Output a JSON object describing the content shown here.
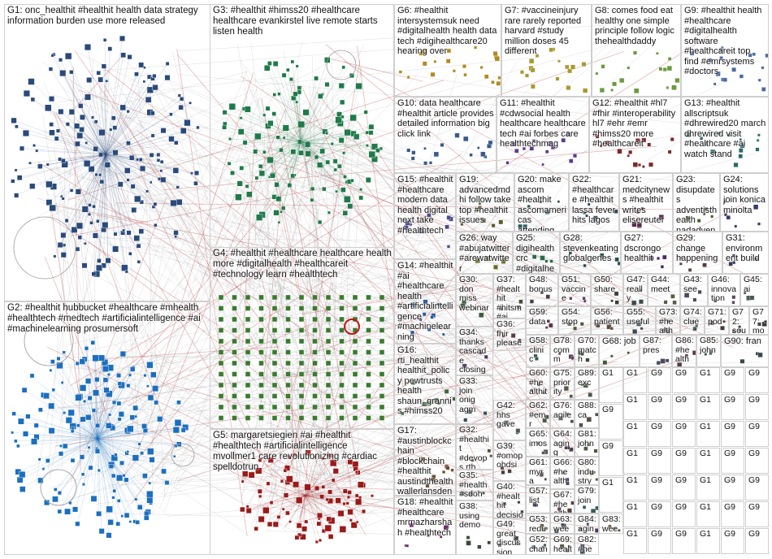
{
  "graph_title": "",
  "groups": [
    {
      "id": "G1",
      "label": "G1: onc_healthit #healthit health data strategy information burden use more released",
      "color": "#2a4a7a"
    },
    {
      "id": "G2",
      "label": "G2: #healthit hubbucket #healthcare #mhealth #healthtech #medtech #artificialintelligence #ai #machinelearning prosumersoft",
      "color": "#1c6fbf"
    },
    {
      "id": "G3",
      "label": "G3: #healthit #himss20 #healthcare healthcare evankirstel live remote starts listen health",
      "color": "#1f7a4a"
    },
    {
      "id": "G4",
      "label": "G4: #healthit #healthcare healthcare health more #digitalhealth #healthcareit #technology learn #healthtech",
      "color": "#3a7a30"
    },
    {
      "id": "G5",
      "label": "G5: margaretsiegien #ai #healthit #healthtech #artificialintelligence mvollmer1 care revolutionizing #cardiac spelldotrun",
      "color": "#9a1a1a"
    },
    {
      "id": "G6",
      "label": "G6: #healthit intersystemsuk need #digitalhealth health data tech #digihealthcare20 hearing over",
      "color": "#b08a20"
    },
    {
      "id": "G7",
      "label": "G7: #vaccineinjury rare rarely reported harvard #study million doses 45 different",
      "color": "#a89a30"
    },
    {
      "id": "G8",
      "label": "G8: comes food eat healthy one simple principle follow logic thehealthdaddy",
      "color": "#6a9a40"
    },
    {
      "id": "G9",
      "label": "G9: #healthit health #healthcare #digitalhealth software #healthcareit top find #emrsystems #doctors",
      "color": "#4a6aa0"
    },
    {
      "id": "G10",
      "label": "G10: data healthcare #healthit article provides detailed information big click link",
      "color": "#3a5a8a"
    },
    {
      "id": "G11",
      "label": "G11: #healthit #cdwsocial health healthcare healthcare tech #ai forbes care healthtechmag",
      "color": "#5a3a8a"
    },
    {
      "id": "G12",
      "label": "G12: #healthit #hl7 #fhir #interoperability hl7 #ehr #emr #himss20 more #healthcareit",
      "color": "#7a2a2a"
    },
    {
      "id": "G13",
      "label": "G13: #healthit allscriptsuk #dhrewired20 march dhrewired visit #healthcare #ai watch stand",
      "color": "#2a6a6a"
    },
    {
      "id": "G14",
      "label": "G14: #healthit #ai #healthcare health #artificialintelligence #machinelearning",
      "color": "#2a5a9a"
    },
    {
      "id": "G15",
      "label": "G15: #healthit #healthcare modern data health digital next take #healthtech",
      "color": "#4a4a8a"
    },
    {
      "id": "G16",
      "label": "G16: rti_healthit healthit_policy pewtrusts health shaun_grannis #himss20",
      "color": "#3a6a3a"
    },
    {
      "id": "G17",
      "label": "G17: #austinblockchain #blockchain #healthit austindthealth wallerlansden",
      "color": "#6a4a2a"
    },
    {
      "id": "G18",
      "label": "G18: #healthit #healthcare mrmazharshah #healthtech",
      "color": "#6a2a6a"
    },
    {
      "id": "G19",
      "label": "G19: advancedmd hi follow take top #healthit issues",
      "color": "#5a5a2a"
    },
    {
      "id": "G20",
      "label": "G20: make ascom #healthit ascomamericas attending",
      "color": "#2a5a5a"
    },
    {
      "id": "G21",
      "label": "G21: medcitynews #healthit writes elisereuter",
      "color": "#5a2a4a"
    },
    {
      "id": "G22",
      "label": "G22: #healthcare #healthit lassa fever hits lagos",
      "color": "#2a4a5a"
    },
    {
      "id": "G23",
      "label": "G23: disupdates adventisthealth nadadventist hss_sf",
      "color": "#4a5a2a"
    },
    {
      "id": "G24",
      "label": "G24: solutions join konica minolta",
      "color": "#3a3a6a"
    },
    {
      "id": "G25",
      "label": "G25: digihealthcrc #digitalhealth",
      "color": "#2a6a4a"
    },
    {
      "id": "G26",
      "label": "G26: way #abujatwitter #arewatwitter",
      "color": "#6a6a2a"
    },
    {
      "id": "G27",
      "label": "G27: dscrongo healthit",
      "color": "#4a2a6a"
    },
    {
      "id": "G28",
      "label": "G28: stevenkeating globalgenes",
      "color": "#2a4a4a"
    },
    {
      "id": "G29",
      "label": "G29: change happening",
      "color": "#5a3a3a"
    },
    {
      "id": "G30",
      "label": "G30: don miss webinar",
      "color": "#3a5a3a"
    },
    {
      "id": "G31",
      "label": "G31: environment build",
      "color": "#3a3a5a"
    },
    {
      "id": "G32",
      "label": "G32: #healthit #devops rth",
      "color": "#5a4a3a"
    },
    {
      "id": "G33",
      "label": "G33: join onig agm",
      "color": "#3a4a5a"
    },
    {
      "id": "G34",
      "label": "G34: thanks cascade closing",
      "color": "#4a3a5a"
    },
    {
      "id": "G35",
      "label": "G35: #health #sdoh",
      "color": "#3a5a4a"
    },
    {
      "id": "G36",
      "label": "G36: fhir please",
      "color": "#5a3a4a"
    },
    {
      "id": "G37",
      "label": "G37: #healthit #hitsm #ai #artificialintelligence",
      "color": "#4a4a3a"
    },
    {
      "id": "G38",
      "label": "G38: using demo",
      "color": "#3a4a3a"
    },
    {
      "id": "G39",
      "label": "G39: #omop ohdsi",
      "color": "#4a3a3a"
    },
    {
      "id": "G40",
      "label": "G40: #healthit decision",
      "color": "#3a3a4a"
    },
    {
      "id": "G41",
      "label": "G41: #healthit #healthcare",
      "color": "#5a4a4a"
    },
    {
      "id": "G42",
      "label": "G42: hhs gave",
      "color": "#4a5a4a"
    },
    {
      "id": "G43",
      "label": "G43: see",
      "color": "#4a4a5a"
    },
    {
      "id": "G44",
      "label": "G44: meet",
      "color": "#5a5a4a"
    },
    {
      "id": "G45",
      "label": "G45: ai",
      "color": "#4a5a5a"
    },
    {
      "id": "G46",
      "label": "G46: innovation",
      "color": "#5a4a5a"
    },
    {
      "id": "G47",
      "label": "G47: really",
      "color": "#3a4a4a"
    },
    {
      "id": "G48",
      "label": "G48: bonus",
      "color": "#4a3a4a"
    },
    {
      "id": "G49",
      "label": "G49: great discussion",
      "color": "#4a4a4a"
    },
    {
      "id": "G50",
      "label": "G50: share",
      "color": "#3a3a3a"
    },
    {
      "id": "G51",
      "label": "G51: vaccine",
      "color": "#5a3a5a"
    },
    {
      "id": "G52",
      "label": "G52: chan",
      "color": "#3a5a5a"
    },
    {
      "id": "G53",
      "label": "G53: reduce",
      "color": "#5a5a3a"
    },
    {
      "id": "G54",
      "label": "G54: stop",
      "color": "#4a5a3a"
    },
    {
      "id": "G55",
      "label": "G55: useful",
      "color": "#3a4a5a"
    },
    {
      "id": "G56",
      "label": "G56: patient",
      "color": "#5a4a3a"
    },
    {
      "id": "G57",
      "label": "G57: list",
      "color": "#4a3a5a"
    },
    {
      "id": "G58",
      "label": "G58: clinic",
      "color": "#3a5a4a"
    },
    {
      "id": "G59",
      "label": "G59: data",
      "color": "#5a3a4a"
    },
    {
      "id": "G60",
      "label": "G60: #healthit",
      "color": "#4a4a5a"
    },
    {
      "id": "G61",
      "label": "G61: myra",
      "color": "#5a4a4a"
    },
    {
      "id": "G62",
      "label": "G62: #emr",
      "color": "#4a5a4a"
    },
    {
      "id": "G63",
      "label": "G63: week",
      "color": "#3a4a4a"
    },
    {
      "id": "G64",
      "label": "G64: aging",
      "color": "#4a3a4a"
    },
    {
      "id": "G65",
      "label": "G65: imos",
      "color": "#5a5a5a"
    },
    {
      "id": "G66",
      "label": "G66: #health",
      "color": "#3a3a5a"
    },
    {
      "id": "G67",
      "label": "G67: #health",
      "color": "#5a3a3a"
    },
    {
      "id": "G68",
      "label": "G68: job",
      "color": "#3a5a3a"
    },
    {
      "id": "G69",
      "label": "G69: health",
      "color": "#4a4a3a"
    },
    {
      "id": "G70",
      "label": "G70: match",
      "color": "#3a4a3a"
    },
    {
      "id": "G71",
      "label": "G71: pod",
      "color": "#4a3a3a"
    },
    {
      "id": "G72",
      "label": "G72: south",
      "color": "#3a3a4a"
    },
    {
      "id": "G73",
      "label": "G73: #health",
      "color": "#5a4a5a"
    },
    {
      "id": "G74",
      "label": "G74: clue",
      "color": "#4a5a5a"
    },
    {
      "id": "G75",
      "label": "G75: priority",
      "color": "#5a5a4a"
    },
    {
      "id": "G76",
      "label": "G76: agile",
      "color": "#4a4a4a"
    },
    {
      "id": "G77",
      "label": "G77: more",
      "color": "#3a3a3a"
    },
    {
      "id": "G78",
      "label": "G78: comm",
      "color": "#5a3a5a"
    },
    {
      "id": "G79",
      "label": "G79: join",
      "color": "#3a5a5a"
    },
    {
      "id": "G80",
      "label": "G80: industry",
      "color": "#5a5a3a"
    },
    {
      "id": "G81",
      "label": "G81: john",
      "color": "#4a5a3a"
    },
    {
      "id": "G82",
      "label": "G82: #healthit",
      "color": "#3a4a5a"
    },
    {
      "id": "G83",
      "label": "G83: week",
      "color": "#5a4a3a"
    },
    {
      "id": "G84",
      "label": "G84: aging",
      "color": "#4a3a5a"
    },
    {
      "id": "G85",
      "label": "G85: john",
      "color": "#3a5a4a"
    },
    {
      "id": "G86",
      "label": "G86: #health",
      "color": "#5a3a4a"
    },
    {
      "id": "G87",
      "label": "G87: pres",
      "color": "#4a4a5a"
    },
    {
      "id": "G88",
      "label": "G88: ca",
      "color": "#5a4a4a"
    },
    {
      "id": "G89",
      "label": "G89: exc",
      "color": "#4a5a4a"
    },
    {
      "id": "G90",
      "label": "G90: fran",
      "color": "#3a4a4a"
    }
  ],
  "small_cell_label": "G9",
  "small_cell_label_alt": "G1",
  "edge_colors": {
    "dense": "#8a8a8a",
    "highlight": "#b02020",
    "light": "#c9c9c9"
  }
}
